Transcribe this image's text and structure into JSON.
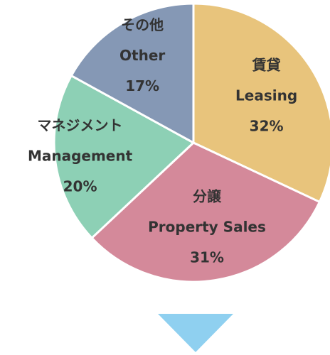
{
  "chart_data": {
    "type": "pie",
    "labels_ja": [
      "賃貸",
      "分譲",
      "マネジメント",
      "その他"
    ],
    "categories": [
      "Leasing",
      "Property Sales",
      "Management",
      "Other"
    ],
    "values": [
      32,
      31,
      20,
      17
    ],
    "value_labels": [
      "32%",
      "31%",
      "20%",
      "17%"
    ],
    "colors": [
      "#e8c47c",
      "#d4899a",
      "#8dd0b5",
      "#8598b5"
    ]
  }
}
